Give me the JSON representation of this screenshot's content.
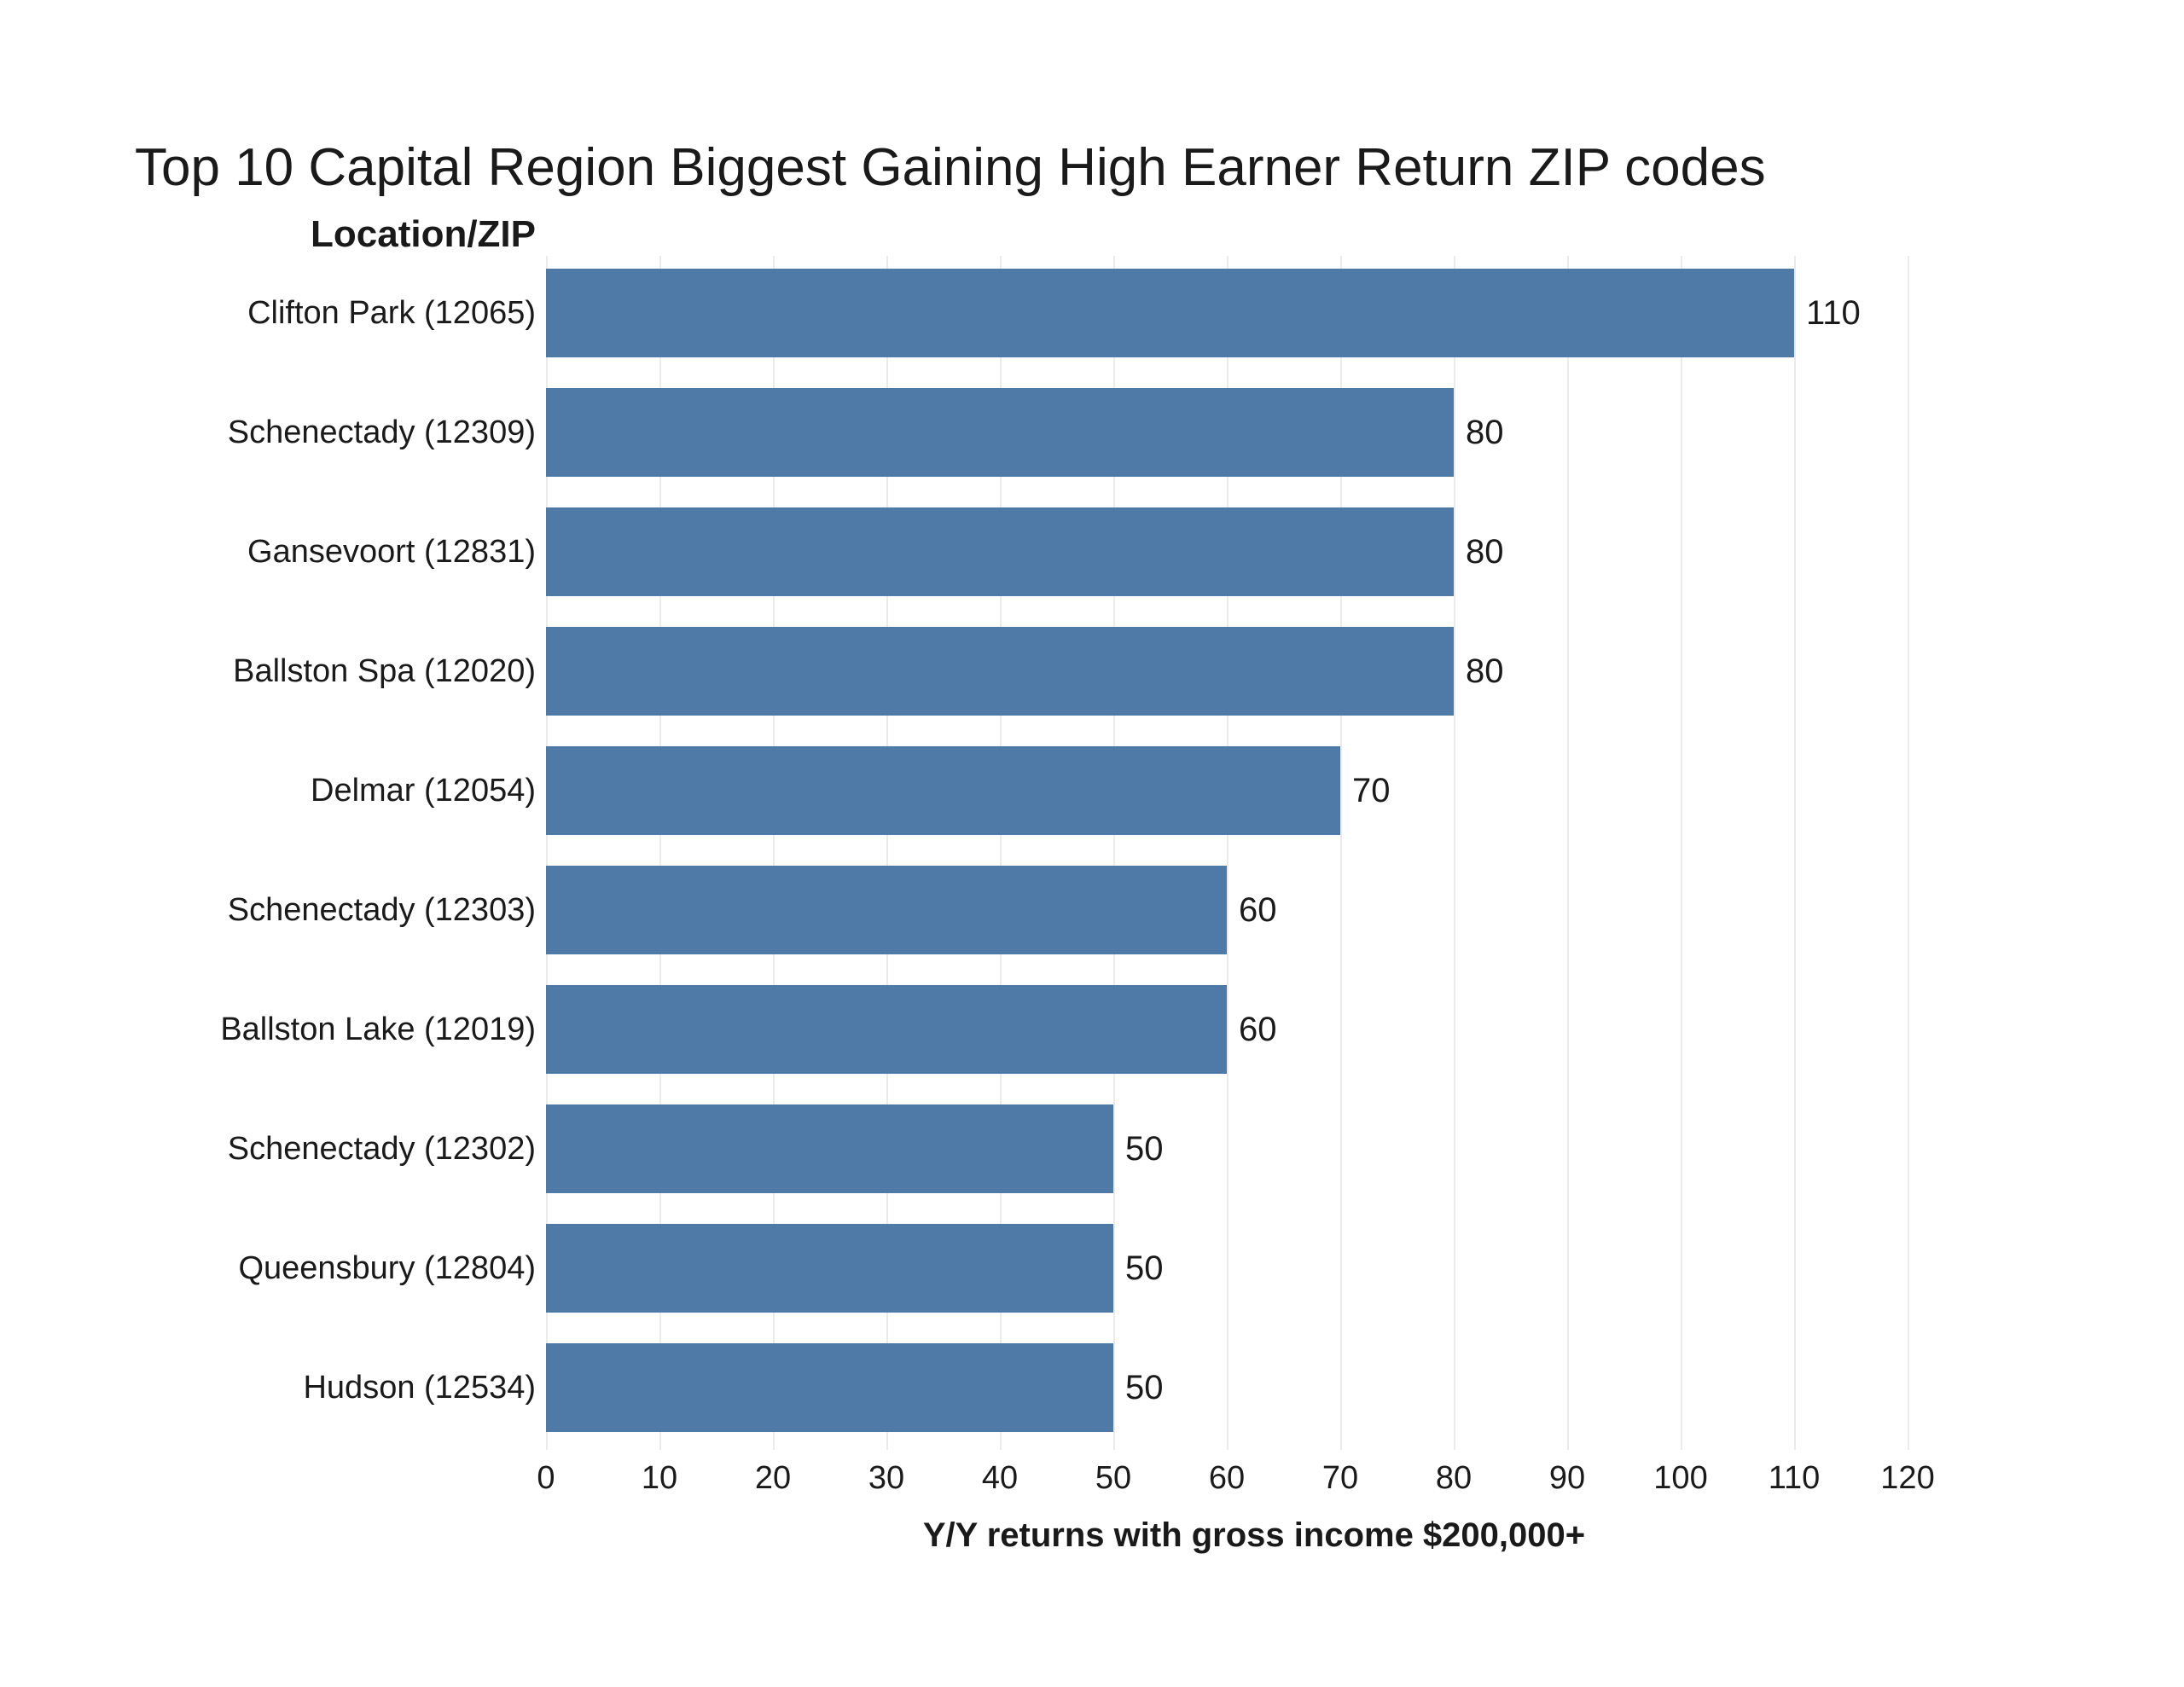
{
  "title": "Top 10 Capital Region Biggest Gaining High Earner Return ZIP codes",
  "column_header": "Location/ZIP",
  "axis": {
    "xlabel": "Y/Y returns with gross income $200,000+",
    "xticks": [
      0,
      10,
      20,
      30,
      40,
      50,
      60,
      70,
      80,
      90,
      100,
      110,
      120
    ]
  },
  "chart_data": {
    "type": "bar",
    "orientation": "horizontal",
    "title": "Top 10 Capital Region Biggest Gaining High Earner Return ZIP codes",
    "categories": [
      "Clifton Park (12065)",
      "Schenectady (12309)",
      "Gansevoort (12831)",
      "Ballston Spa (12020)",
      "Delmar (12054)",
      "Schenectady (12303)",
      "Ballston Lake (12019)",
      "Schenectady (12302)",
      "Queensbury (12804)",
      "Hudson (12534)"
    ],
    "values": [
      110,
      80,
      80,
      80,
      70,
      60,
      60,
      50,
      50,
      50
    ],
    "value_labels": [
      "110",
      "80",
      "80",
      "80",
      "70",
      "60",
      "60",
      "50",
      "50",
      "50"
    ],
    "xlabel": "Y/Y returns with gross income $200,000+",
    "ylabel": "Location/ZIP",
    "xlim": [
      0,
      120
    ],
    "xticks": [
      0,
      10,
      20,
      30,
      40,
      50,
      60,
      70,
      80,
      90,
      100,
      110,
      120
    ],
    "grid": "vertical-gridlines-only",
    "legend": "none",
    "bar_color": "#4f7aa8",
    "gridline_color": "#ebebeb",
    "text_color": "#1a1a1a",
    "background_color": "#ffffff"
  }
}
